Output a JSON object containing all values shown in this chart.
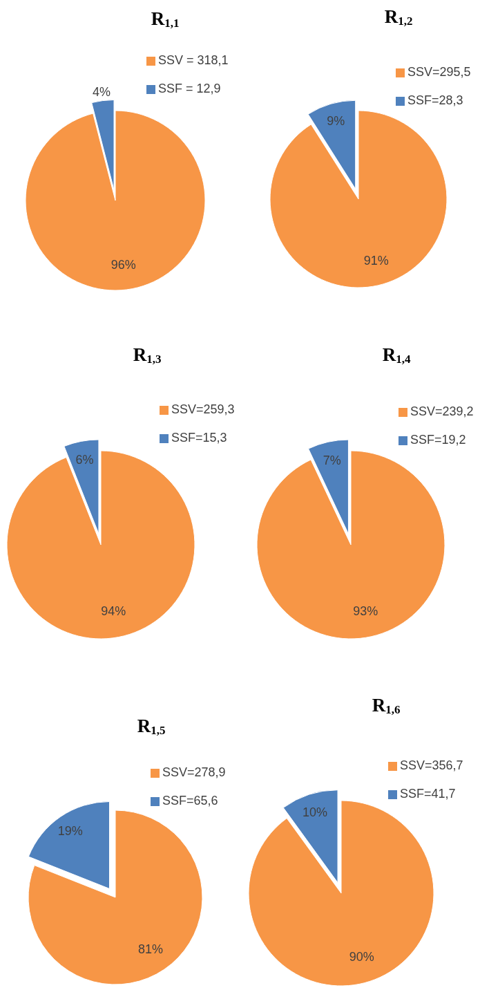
{
  "chart_data": [
    {
      "type": "pie",
      "title": "R$_{1,1}$",
      "categories": [
        "SSV = 318,1",
        "SSF = 12,9"
      ],
      "values": [
        96,
        4
      ],
      "colors": [
        "#f79646",
        "#4f81bd"
      ],
      "value_labels": [
        "96%",
        "4%"
      ],
      "legend": "top right"
    },
    {
      "type": "pie",
      "title": "R$_{1,2}$",
      "categories": [
        "SSV=295,5",
        "SSF=28,3"
      ],
      "values": [
        91,
        9
      ],
      "colors": [
        "#f79646",
        "#4f81bd"
      ],
      "value_labels": [
        "91%",
        "9%"
      ],
      "legend": "top right"
    },
    {
      "type": "pie",
      "title": "R$_{1,3}$",
      "categories": [
        "SSV=259,3",
        "SSF=15,3"
      ],
      "values": [
        94,
        6
      ],
      "colors": [
        "#f79646",
        "#4f81bd"
      ],
      "value_labels": [
        "94%",
        "6%"
      ],
      "legend": "top right"
    },
    {
      "type": "pie",
      "title": "R$_{1,4}$",
      "categories": [
        "SSV=239,2",
        "SSF=19,2"
      ],
      "values": [
        93,
        7
      ],
      "colors": [
        "#f79646",
        "#4f81bd"
      ],
      "value_labels": [
        "93%",
        "7%"
      ],
      "legend": "top right"
    },
    {
      "type": "pie",
      "title": "R$_{1,5}$",
      "categories": [
        "SSV=278,9",
        "SSF=65,6"
      ],
      "values": [
        81,
        19
      ],
      "colors": [
        "#f79646",
        "#4f81bd"
      ],
      "value_labels": [
        "81%",
        "19%"
      ],
      "legend": "top right"
    },
    {
      "type": "pie",
      "title": "R$_{1,6}$",
      "categories": [
        "SSV=356,7",
        "SSF=41,7"
      ],
      "values": [
        90,
        10
      ],
      "colors": [
        "#f79646",
        "#4f81bd"
      ],
      "value_labels": [
        "90%",
        "10%"
      ],
      "legend": "top right"
    }
  ]
}
